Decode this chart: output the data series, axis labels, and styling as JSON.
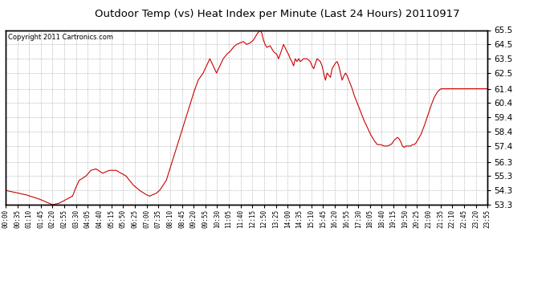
{
  "title": "Outdoor Temp (vs) Heat Index per Minute (Last 24 Hours) 20110917",
  "copyright": "Copyright 2011 Cartronics.com",
  "line_color": "#cc0000",
  "background_color": "#ffffff",
  "plot_bg_color": "#ffffff",
  "grid_color": "#b0b0b0",
  "ylim": [
    53.3,
    65.5
  ],
  "yticks": [
    53.3,
    54.3,
    55.3,
    56.3,
    57.4,
    58.4,
    59.4,
    60.4,
    61.4,
    62.5,
    63.5,
    64.5,
    65.5
  ],
  "xtick_labels": [
    "00:00",
    "00:35",
    "01:10",
    "01:45",
    "02:20",
    "02:55",
    "03:30",
    "04:05",
    "04:40",
    "05:15",
    "05:50",
    "06:25",
    "07:00",
    "07:35",
    "08:10",
    "08:45",
    "09:20",
    "09:55",
    "10:30",
    "11:05",
    "11:40",
    "12:15",
    "12:50",
    "13:25",
    "14:00",
    "14:35",
    "15:10",
    "15:45",
    "16:20",
    "16:55",
    "17:30",
    "18:05",
    "18:40",
    "19:15",
    "19:50",
    "20:25",
    "21:00",
    "21:35",
    "22:10",
    "22:45",
    "23:20",
    "23:55"
  ],
  "keypoints": [
    [
      0,
      54.3
    ],
    [
      60,
      54.0
    ],
    [
      100,
      53.7
    ],
    [
      140,
      53.3
    ],
    [
      160,
      53.4
    ],
    [
      200,
      53.9
    ],
    [
      210,
      54.5
    ],
    [
      220,
      55.0
    ],
    [
      240,
      55.3
    ],
    [
      255,
      55.7
    ],
    [
      270,
      55.8
    ],
    [
      290,
      55.5
    ],
    [
      310,
      55.7
    ],
    [
      330,
      55.7
    ],
    [
      345,
      55.5
    ],
    [
      360,
      55.3
    ],
    [
      380,
      54.7
    ],
    [
      400,
      54.3
    ],
    [
      420,
      54.0
    ],
    [
      430,
      53.9
    ],
    [
      450,
      54.1
    ],
    [
      460,
      54.3
    ],
    [
      480,
      55.0
    ],
    [
      500,
      56.5
    ],
    [
      520,
      58.0
    ],
    [
      540,
      59.5
    ],
    [
      560,
      61.0
    ],
    [
      575,
      62.0
    ],
    [
      590,
      62.5
    ],
    [
      600,
      63.0
    ],
    [
      610,
      63.5
    ],
    [
      620,
      63.0
    ],
    [
      630,
      62.5
    ],
    [
      640,
      63.0
    ],
    [
      650,
      63.5
    ],
    [
      660,
      63.8
    ],
    [
      670,
      64.0
    ],
    [
      680,
      64.3
    ],
    [
      690,
      64.5
    ],
    [
      700,
      64.6
    ],
    [
      710,
      64.7
    ],
    [
      720,
      64.5
    ],
    [
      730,
      64.6
    ],
    [
      740,
      64.8
    ],
    [
      750,
      65.2
    ],
    [
      760,
      65.5
    ],
    [
      765,
      65.3
    ],
    [
      770,
      64.8
    ],
    [
      775,
      64.5
    ],
    [
      780,
      64.3
    ],
    [
      790,
      64.4
    ],
    [
      800,
      64.0
    ],
    [
      810,
      63.8
    ],
    [
      815,
      63.5
    ],
    [
      820,
      63.8
    ],
    [
      830,
      64.5
    ],
    [
      840,
      64.0
    ],
    [
      845,
      63.8
    ],
    [
      850,
      63.5
    ],
    [
      855,
      63.3
    ],
    [
      860,
      63.0
    ],
    [
      865,
      63.5
    ],
    [
      870,
      63.3
    ],
    [
      875,
      63.5
    ],
    [
      880,
      63.3
    ],
    [
      890,
      63.5
    ],
    [
      900,
      63.5
    ],
    [
      910,
      63.3
    ],
    [
      915,
      63.0
    ],
    [
      920,
      62.8
    ],
    [
      930,
      63.5
    ],
    [
      940,
      63.3
    ],
    [
      945,
      63.0
    ],
    [
      950,
      62.5
    ],
    [
      955,
      62.0
    ],
    [
      960,
      62.5
    ],
    [
      970,
      62.2
    ],
    [
      975,
      62.8
    ],
    [
      980,
      63.0
    ],
    [
      985,
      63.2
    ],
    [
      990,
      63.3
    ],
    [
      995,
      63.0
    ],
    [
      1000,
      62.5
    ],
    [
      1005,
      62.0
    ],
    [
      1010,
      62.3
    ],
    [
      1015,
      62.5
    ],
    [
      1020,
      62.3
    ],
    [
      1025,
      62.0
    ],
    [
      1030,
      61.7
    ],
    [
      1035,
      61.4
    ],
    [
      1040,
      61.0
    ],
    [
      1050,
      60.4
    ],
    [
      1060,
      59.8
    ],
    [
      1070,
      59.2
    ],
    [
      1080,
      58.7
    ],
    [
      1090,
      58.2
    ],
    [
      1100,
      57.8
    ],
    [
      1110,
      57.5
    ],
    [
      1120,
      57.5
    ],
    [
      1130,
      57.4
    ],
    [
      1140,
      57.4
    ],
    [
      1150,
      57.5
    ],
    [
      1155,
      57.6
    ],
    [
      1160,
      57.8
    ],
    [
      1170,
      58.0
    ],
    [
      1175,
      57.9
    ],
    [
      1180,
      57.7
    ],
    [
      1185,
      57.4
    ],
    [
      1190,
      57.3
    ],
    [
      1195,
      57.4
    ],
    [
      1200,
      57.4
    ],
    [
      1210,
      57.4
    ],
    [
      1215,
      57.5
    ],
    [
      1220,
      57.5
    ],
    [
      1225,
      57.6
    ],
    [
      1230,
      57.8
    ],
    [
      1240,
      58.2
    ],
    [
      1250,
      58.8
    ],
    [
      1260,
      59.5
    ],
    [
      1270,
      60.2
    ],
    [
      1280,
      60.8
    ],
    [
      1290,
      61.2
    ],
    [
      1300,
      61.4
    ],
    [
      1439,
      61.4
    ]
  ]
}
